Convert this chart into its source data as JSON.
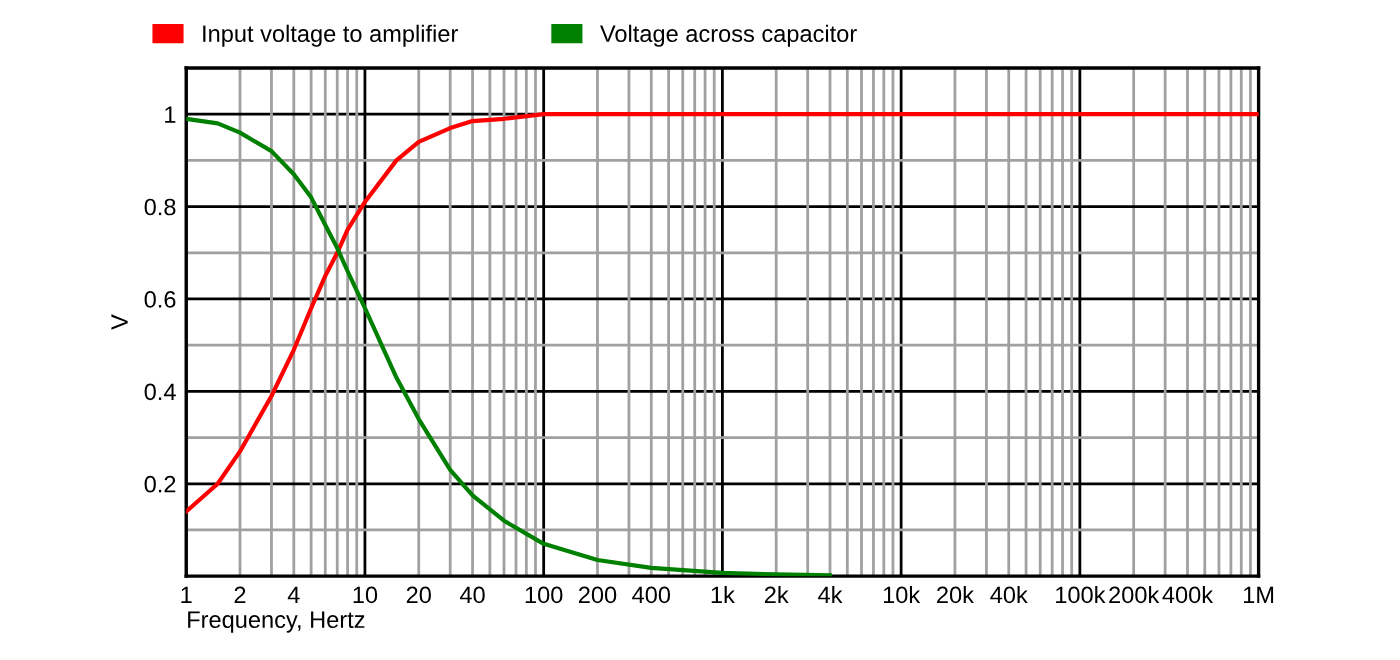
{
  "chart_data": {
    "type": "line",
    "xlabel": "Frequency, Hertz",
    "ylabel": "V",
    "log": "x",
    "grid": true,
    "legend": "top left",
    "marker": "none",
    "line_style": "solid",
    "xlim": [
      1,
      1000000
    ],
    "ylim": [
      0,
      1.1
    ],
    "xticks": [
      {
        "value": 1,
        "label": "1"
      },
      {
        "value": 2,
        "label": "2"
      },
      {
        "value": 4,
        "label": "4"
      },
      {
        "value": 10,
        "label": "10"
      },
      {
        "value": 20,
        "label": "20"
      },
      {
        "value": 40,
        "label": "40"
      },
      {
        "value": 100,
        "label": "100"
      },
      {
        "value": 200,
        "label": "200"
      },
      {
        "value": 400,
        "label": "400"
      },
      {
        "value": 1000,
        "label": "1k"
      },
      {
        "value": 2000,
        "label": "2k"
      },
      {
        "value": 4000,
        "label": "4k"
      },
      {
        "value": 10000,
        "label": "10k"
      },
      {
        "value": 20000,
        "label": "20k"
      },
      {
        "value": 40000,
        "label": "40k"
      },
      {
        "value": 100000,
        "label": "100k"
      },
      {
        "value": 200000,
        "label": "200k"
      },
      {
        "value": 400000,
        "label": "400k"
      },
      {
        "value": 1000000,
        "label": "1M"
      }
    ],
    "yticks": [
      {
        "value": 0.1,
        "label": null
      },
      0.2,
      {
        "value": 0.3,
        "label": null
      },
      0.4,
      {
        "value": 0.5,
        "label": null
      },
      0.6,
      {
        "value": 0.7,
        "label": null
      },
      0.8,
      {
        "value": 0.9,
        "label": null
      },
      1,
      {
        "value": 1.1,
        "label": null
      }
    ],
    "series": [
      {
        "name": "Input voltage to amplifier",
        "color": "#ff0000",
        "x": [
          1,
          1.5,
          2,
          3,
          4,
          5,
          6,
          7,
          8,
          10,
          15,
          20,
          30,
          40,
          60,
          100,
          1000,
          1000000
        ],
        "values": [
          0.14,
          0.2,
          0.27,
          0.39,
          0.49,
          0.58,
          0.65,
          0.7,
          0.75,
          0.81,
          0.9,
          0.94,
          0.97,
          0.985,
          0.99,
          1.0,
          1.0,
          1.0
        ]
      },
      {
        "name": "Voltage across capacitor",
        "color": "#008000",
        "x": [
          1,
          1.5,
          2,
          3,
          4,
          5,
          6,
          7,
          8,
          10,
          15,
          20,
          30,
          40,
          60,
          100,
          200,
          400,
          1000,
          2000,
          4000
        ],
        "values": [
          0.99,
          0.98,
          0.96,
          0.92,
          0.87,
          0.82,
          0.76,
          0.71,
          0.66,
          0.58,
          0.43,
          0.34,
          0.23,
          0.175,
          0.12,
          0.07,
          0.035,
          0.018,
          0.007,
          0.004,
          0.002
        ]
      }
    ]
  }
}
